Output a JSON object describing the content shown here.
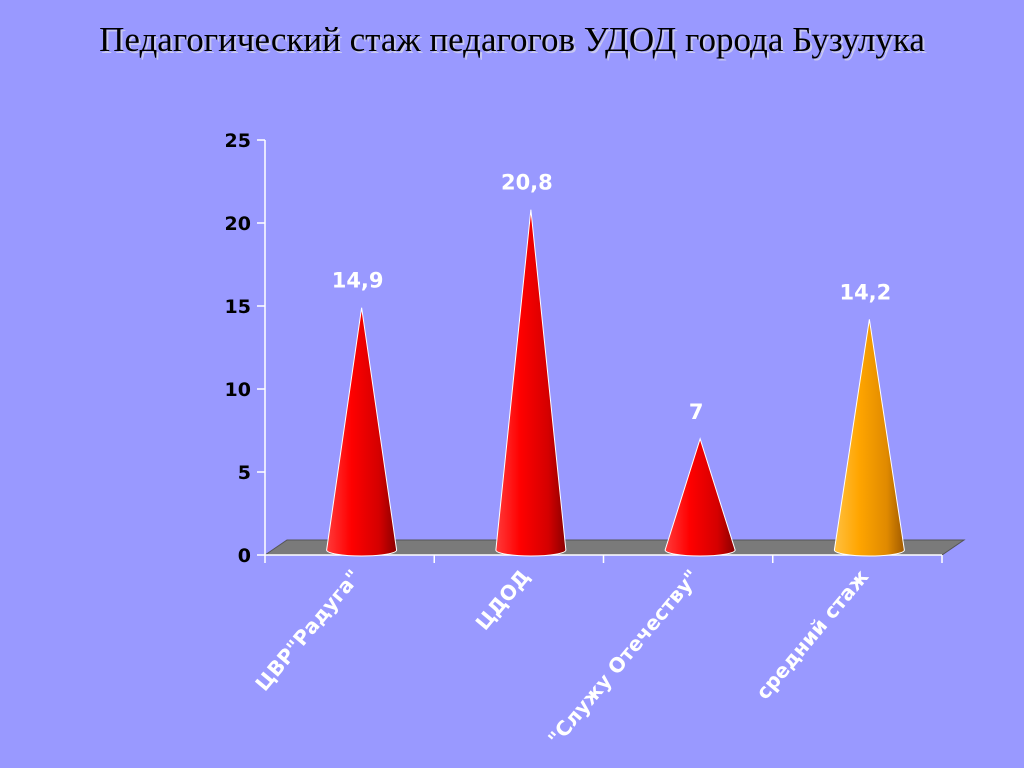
{
  "title": "Педагогический стаж педагогов УДОД города Бузулука",
  "chart_data": {
    "type": "bar",
    "style": "3d-cone",
    "categories": [
      "ЦВР\"Радуга\"",
      "ЦДОД",
      "\"Служу Отечеству\"",
      "средний стаж"
    ],
    "values": [
      14.9,
      20.8,
      7,
      14.2
    ],
    "data_labels": [
      "14,9",
      "20,8",
      "7",
      "14,2"
    ],
    "colors": [
      "#ee0000",
      "#ee0000",
      "#ee0000",
      "#f5a000"
    ],
    "ylim": [
      0,
      25
    ],
    "yticks": [
      0,
      5,
      10,
      15,
      20,
      25
    ],
    "ytick_labels": [
      "0",
      "5",
      "10",
      "15",
      "20",
      "25"
    ],
    "grid": false,
    "legend": "none"
  }
}
